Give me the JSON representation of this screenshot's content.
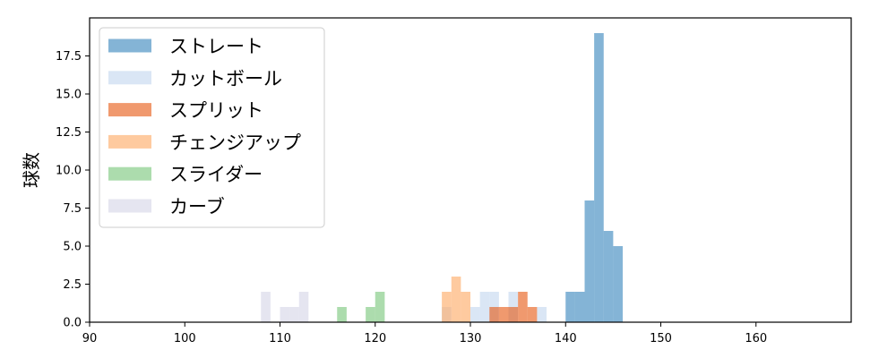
{
  "chart_data": {
    "type": "bar",
    "title": "",
    "xlabel": "",
    "ylabel": "球数",
    "xlim": [
      90,
      170
    ],
    "ylim": [
      0,
      20
    ],
    "x_ticks": [
      "90",
      "100",
      "110",
      "120",
      "130",
      "140",
      "150",
      "160"
    ],
    "x_tick_values": [
      90,
      100,
      110,
      120,
      130,
      140,
      150,
      160
    ],
    "y_ticks": [
      "0.0",
      "2.5",
      "5.0",
      "7.5",
      "10.0",
      "12.5",
      "15.0",
      "17.5"
    ],
    "y_tick_values": [
      0,
      2.5,
      5,
      7.5,
      10,
      12.5,
      15,
      17.5
    ],
    "grid": false,
    "legend_position": "top-left",
    "series": [
      {
        "name": "ストレート",
        "color": "#1f77b4",
        "opacity": 0.55,
        "bins": [
          [
            140,
            141,
            2
          ],
          [
            141,
            142,
            2
          ],
          [
            142,
            143,
            8
          ],
          [
            143,
            144,
            19
          ],
          [
            144,
            145,
            6
          ],
          [
            145,
            146,
            5
          ]
        ]
      },
      {
        "name": "カットボール",
        "color": "#aec7e8",
        "opacity": 0.45,
        "bins": [
          [
            127,
            128,
            1
          ],
          [
            130,
            131,
            1
          ],
          [
            131,
            132,
            2
          ],
          [
            132,
            133,
            2
          ],
          [
            134,
            135,
            2
          ],
          [
            137,
            138,
            1
          ]
        ]
      },
      {
        "name": "スプリット",
        "color": "#e6550d",
        "opacity": 0.6,
        "bins": [
          [
            132,
            133,
            1
          ],
          [
            133,
            134,
            1
          ],
          [
            134,
            135,
            1
          ],
          [
            135,
            136,
            2
          ],
          [
            136,
            137,
            1
          ]
        ]
      },
      {
        "name": "チェンジアップ",
        "color": "#fdae6b",
        "opacity": 0.65,
        "bins": [
          [
            127,
            128,
            2
          ],
          [
            128,
            129,
            3
          ],
          [
            129,
            130,
            2
          ]
        ]
      },
      {
        "name": "スライダー",
        "color": "#74c476",
        "opacity": 0.6,
        "bins": [
          [
            116,
            117,
            1
          ],
          [
            119,
            120,
            1
          ],
          [
            120,
            121,
            2
          ]
        ]
      },
      {
        "name": "カーブ",
        "color": "#c6c6de",
        "opacity": 0.45,
        "bins": [
          [
            108,
            109,
            2
          ],
          [
            110,
            111,
            1
          ],
          [
            111,
            112,
            1
          ],
          [
            112,
            113,
            2
          ]
        ]
      }
    ]
  }
}
